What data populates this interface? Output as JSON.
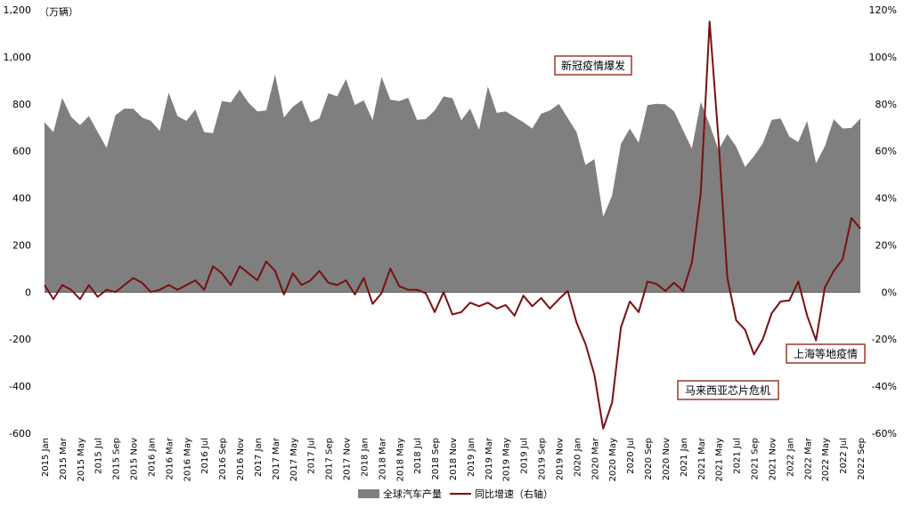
{
  "chart_data": {
    "type": "area",
    "title": "",
    "unit_label": "（万辆）",
    "x": [
      "2015 Jan",
      "2015 Feb",
      "2015 Mar",
      "2015 Apr",
      "2015 May",
      "2015 Jun",
      "2015 Jul",
      "2015 Aug",
      "2015 Sep",
      "2015 Oct",
      "2015 Nov",
      "2015 Dec",
      "2016 Jan",
      "2016 Feb",
      "2016 Mar",
      "2016 Apr",
      "2016 May",
      "2016 Jun",
      "2016 Jul",
      "2016 Aug",
      "2016 Sep",
      "2016 Oct",
      "2016 Nov",
      "2016 Dec",
      "2017 Jan",
      "2017 Feb",
      "2017 Mar",
      "2017 Apr",
      "2017 May",
      "2017 Jun",
      "2017 Jul",
      "2017 Aug",
      "2017 Sep",
      "2017 Oct",
      "2017 Nov",
      "2017 Dec",
      "2018 Jan",
      "2018 Feb",
      "2018 Mar",
      "2018 Apr",
      "2018 May",
      "2018 Jun",
      "2018 Jul",
      "2018 Aug",
      "2018 Sep",
      "2018 Oct",
      "2018 Nov",
      "2018 Dec",
      "2019 Jan",
      "2019 Feb",
      "2019 Mar",
      "2019 Apr",
      "2019 May",
      "2019 Jun",
      "2019 Jul",
      "2019 Aug",
      "2019 Sep",
      "2019 Oct",
      "2019 Nov",
      "2019 Dec",
      "2020 Jan",
      "2020 Feb",
      "2020 Mar",
      "2020 Apr",
      "2020 May",
      "2020 Jun",
      "2020 Jul",
      "2020 Aug",
      "2020 Sep",
      "2020 Oct",
      "2020 Nov",
      "2020 Dec",
      "2021 Jan",
      "2021 Feb",
      "2021 Mar",
      "2021 Apr",
      "2021 May",
      "2021 Jun",
      "2021 Jul",
      "2021 Aug",
      "2021 Sep",
      "2021 Oct",
      "2021 Nov",
      "2021 Dec",
      "2022 Jan",
      "2022 Feb",
      "2022 Mar",
      "2022 Apr",
      "2022 May",
      "2022 Jun",
      "2022 Jul",
      "2022 Aug",
      "2022 Sep"
    ],
    "x_tick_labels": [
      "2015 Jan",
      "2015 Mar",
      "2015 May",
      "2015 Jul",
      "2015 Sep",
      "2015 Nov",
      "2016 Jan",
      "2016 Mar",
      "2016 May",
      "2016 Jul",
      "2016 Sep",
      "2016 Nov",
      "2017 Jan",
      "2017 Mar",
      "2017 May",
      "2017 Jul",
      "2017 Sep",
      "2017 Nov",
      "2018 Jan",
      "2018 Mar",
      "2018 May",
      "2018 Jul",
      "2018 Sep",
      "2018 Nov",
      "2019 Jan",
      "2019 Mar",
      "2019 May",
      "2019 Jul",
      "2019 Sep",
      "2019 Nov",
      "2020 Jan",
      "2020 Mar",
      "2020 May",
      "2020 Jul",
      "2020 Sep",
      "2020 Nov",
      "2021 Jan",
      "2021 Mar",
      "2021 May",
      "2021 Jul",
      "2021 Sep",
      "2021 Nov",
      "2022 Jan",
      "2022 Mar",
      "2022 May",
      "2022 Jul",
      "2022 Sep"
    ],
    "ylim_left": [
      -600,
      1200
    ],
    "yticks_left": [
      "-600",
      "-400",
      "-200",
      "0",
      "200",
      "400",
      "600",
      "800",
      "1,000",
      "1,200"
    ],
    "ylim_right": [
      -60,
      120
    ],
    "yticks_right": [
      "-60%",
      "-40%",
      "-20%",
      "0%",
      "20%",
      "40%",
      "60%",
      "80%",
      "100%",
      "120%"
    ],
    "grid": false,
    "legend_position": "bottom",
    "series": [
      {
        "name": "全球汽车产量",
        "kind": "area",
        "axis": "left",
        "color": "#7f7f7f",
        "values": [
          722,
          680,
          825,
          745,
          710,
          748,
          680,
          613,
          752,
          780,
          780,
          742,
          728,
          685,
          848,
          748,
          728,
          776,
          680,
          676,
          812,
          806,
          860,
          805,
          768,
          772,
          925,
          742,
          788,
          815,
          722,
          738,
          845,
          832,
          905,
          795,
          815,
          730,
          915,
          818,
          812,
          826,
          732,
          736,
          772,
          832,
          824,
          730,
          780,
          690,
          874,
          762,
          768,
          745,
          722,
          695,
          758,
          772,
          800,
          740,
          680,
          540,
          565,
          320,
          410,
          630,
          695,
          635,
          795,
          800,
          798,
          768,
          688,
          610,
          808,
          712,
          605,
          672,
          618,
          532,
          578,
          632,
          732,
          738,
          660,
          638,
          728,
          548,
          620,
          735,
          695,
          698,
          738
        ]
      },
      {
        "name": "同比增速（右轴）",
        "kind": "line",
        "axis": "right",
        "color": "#7a1010",
        "values": [
          3,
          -3,
          3,
          1,
          -3,
          3,
          -2,
          1,
          0,
          3,
          6,
          4,
          0,
          1,
          3,
          1,
          3,
          5,
          1,
          11,
          8,
          3,
          11,
          8,
          5,
          13,
          9,
          -1,
          8,
          3,
          5,
          9,
          4,
          3,
          5,
          -1,
          6,
          -5,
          -0.5,
          10,
          2.5,
          1,
          1,
          -0.5,
          -8.5,
          0,
          -9.5,
          -8.5,
          -4.5,
          -6,
          -4.5,
          -7,
          -5.5,
          -10,
          -1.5,
          -6,
          -2.5,
          -7,
          -3,
          0.5,
          -13,
          -22,
          -35,
          -58,
          -47,
          -15,
          -4,
          -8.5,
          4.5,
          3.5,
          0.5,
          4,
          0.5,
          12.5,
          42,
          115,
          65,
          6,
          -12,
          -16,
          -26.5,
          -20,
          -9,
          -4,
          -3.5,
          4.5,
          -10,
          -20.5,
          2,
          9,
          14,
          31.5,
          27
        ]
      }
    ],
    "annotations": [
      "新冠疫情爆发",
      "马来西亚芯片危机",
      "上海等地疫情"
    ]
  }
}
